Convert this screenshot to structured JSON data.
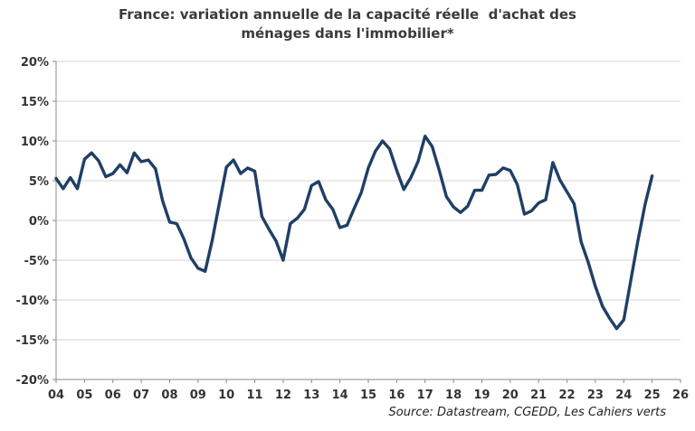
{
  "chart_data": {
    "type": "line",
    "title_lines": [
      "France: variation annuelle de la capacité réelle  d'achat des",
      "ménages dans l'immobilier*"
    ],
    "source": "Source: Datastream, CGEDD, Les Cahiers verts",
    "ylim": [
      -0.2,
      0.2
    ],
    "xlim": [
      2004,
      2026
    ],
    "yticks": [
      -0.2,
      -0.15,
      -0.1,
      -0.05,
      0,
      0.05,
      0.1,
      0.15,
      0.2
    ],
    "ytick_labels": [
      "-20%",
      "-15%",
      "-10%",
      "-5%",
      "0%",
      "5%",
      "10%",
      "15%",
      "20%"
    ],
    "xticks": [
      2004,
      2005,
      2006,
      2007,
      2008,
      2009,
      2010,
      2011,
      2012,
      2013,
      2014,
      2015,
      2016,
      2017,
      2018,
      2019,
      2020,
      2021,
      2022,
      2023,
      2024,
      2025,
      2026
    ],
    "xtick_labels": [
      "04",
      "05",
      "06",
      "07",
      "08",
      "09",
      "10",
      "11",
      "12",
      "13",
      "14",
      "15",
      "16",
      "17",
      "18",
      "19",
      "20",
      "21",
      "22",
      "23",
      "24",
      "25",
      "26"
    ],
    "grid": true,
    "line_color": "#1f3f66",
    "series": [
      {
        "name": "",
        "x": [
          2004.0,
          2004.25,
          2004.5,
          2004.75,
          2005.0,
          2005.25,
          2005.5,
          2005.75,
          2006.0,
          2006.25,
          2006.5,
          2006.75,
          2007.0,
          2007.25,
          2007.5,
          2007.75,
          2008.0,
          2008.25,
          2008.5,
          2008.75,
          2009.0,
          2009.25,
          2009.5,
          2009.75,
          2010.0,
          2010.25,
          2010.5,
          2010.75,
          2011.0,
          2011.25,
          2011.5,
          2011.75,
          2012.0,
          2012.25,
          2012.5,
          2012.75,
          2013.0,
          2013.25,
          2013.5,
          2013.75,
          2014.0,
          2014.25,
          2014.5,
          2014.75,
          2015.0,
          2015.25,
          2015.5,
          2015.75,
          2016.0,
          2016.25,
          2016.5,
          2016.75,
          2017.0,
          2017.25,
          2017.5,
          2017.75,
          2018.0,
          2018.25,
          2018.5,
          2018.75,
          2019.0,
          2019.25,
          2019.5,
          2019.75,
          2020.0,
          2020.25,
          2020.5,
          2020.75,
          2021.0,
          2021.25,
          2021.5,
          2021.75,
          2022.0,
          2022.25,
          2022.5,
          2022.75,
          2023.0,
          2023.25,
          2023.5,
          2023.75,
          2024.0,
          2024.25,
          2024.5,
          2024.75,
          2025.0
        ],
        "y": [
          0.053,
          0.04,
          0.054,
          0.04,
          0.077,
          0.085,
          0.075,
          0.055,
          0.059,
          0.07,
          0.06,
          0.085,
          0.074,
          0.076,
          0.065,
          0.025,
          -0.002,
          -0.004,
          -0.023,
          -0.047,
          -0.06,
          -0.064,
          -0.025,
          0.021,
          0.067,
          0.076,
          0.059,
          0.066,
          0.062,
          0.005,
          -0.011,
          -0.026,
          -0.05,
          -0.004,
          0.003,
          0.014,
          0.044,
          0.049,
          0.026,
          0.014,
          -0.009,
          -0.006,
          0.015,
          0.035,
          0.066,
          0.087,
          0.1,
          0.09,
          0.063,
          0.039,
          0.054,
          0.074,
          0.106,
          0.093,
          0.063,
          0.03,
          0.017,
          0.01,
          0.018,
          0.038,
          0.038,
          0.057,
          0.058,
          0.066,
          0.063,
          0.045,
          0.008,
          0.012,
          0.022,
          0.026,
          0.073,
          0.051,
          0.036,
          0.021,
          -0.027,
          -0.053,
          -0.083,
          -0.108,
          -0.123,
          -0.136,
          -0.125,
          -0.075,
          -0.025,
          0.02,
          0.056
        ]
      }
    ]
  }
}
